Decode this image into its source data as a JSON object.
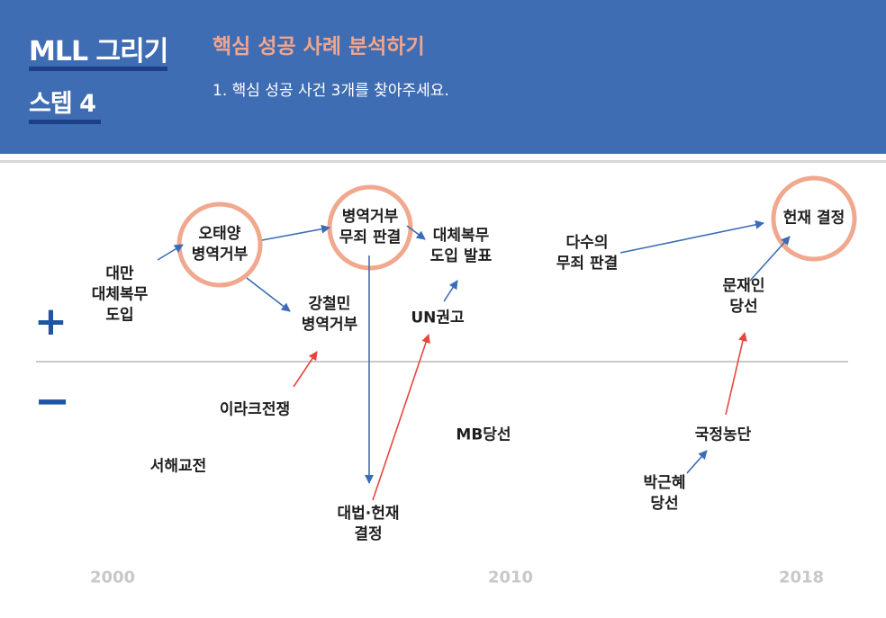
{
  "header": {
    "title_main": "MLL 그리기",
    "title_step": "스텝 4",
    "heading": "핵심 성공 사례 분석하기",
    "subheading": "1. 핵심 성공 사건 3개를 찾아주세요."
  },
  "axis": {
    "plus": "+",
    "minus": "−",
    "years": [
      "2000",
      "2010",
      "2018"
    ]
  },
  "events": [
    {
      "id": "e1",
      "text": "대만\n대체복무\n도입"
    },
    {
      "id": "e2",
      "text": "오태양\n병역거부",
      "highlight": true
    },
    {
      "id": "e3",
      "text": "강철민\n병역거부"
    },
    {
      "id": "e4",
      "text": "이라크전쟁"
    },
    {
      "id": "e5",
      "text": "서해교전"
    },
    {
      "id": "e6",
      "text": "병역거부\n무죄 판결",
      "highlight": true
    },
    {
      "id": "e7",
      "text": "대법·헌재\n결정"
    },
    {
      "id": "e8",
      "text": "대체복무\n도입 발표"
    },
    {
      "id": "e9",
      "text": "UN권고"
    },
    {
      "id": "e10",
      "text": "MB당선"
    },
    {
      "id": "e11",
      "text": "다수의\n무죄 판결"
    },
    {
      "id": "e12",
      "text": "헌재 결정",
      "highlight": true
    },
    {
      "id": "e13",
      "text": "문재인\n당선"
    },
    {
      "id": "e14",
      "text": "국정농단"
    },
    {
      "id": "e15",
      "text": "박근혜\n당선"
    }
  ],
  "arrows": [
    {
      "from": "e1",
      "to": "e2",
      "color": "blue"
    },
    {
      "from": "e2",
      "to": "e6",
      "color": "blue"
    },
    {
      "from": "e2",
      "to": "e3",
      "color": "blue"
    },
    {
      "from": "e4",
      "to": "e3",
      "color": "red"
    },
    {
      "from": "e6",
      "to": "e8",
      "color": "blue"
    },
    {
      "from": "e6",
      "to": "e7",
      "color": "blue"
    },
    {
      "from": "e7",
      "to": "e9",
      "color": "red"
    },
    {
      "from": "e9",
      "to": "e8",
      "color": "blue"
    },
    {
      "from": "e11",
      "to": "e12",
      "color": "blue"
    },
    {
      "from": "e13",
      "to": "e12",
      "color": "blue"
    },
    {
      "from": "e14",
      "to": "e13",
      "color": "red"
    },
    {
      "from": "e15",
      "to": "e14",
      "color": "blue"
    }
  ],
  "colors": {
    "header_bg": "#3f6db3",
    "heading": "#f1a58d",
    "highlight_ring": "#f0a88e",
    "arrow_blue": "#3b6cb7",
    "arrow_red": "#e4473f",
    "baseline": "#c9c9c9"
  }
}
